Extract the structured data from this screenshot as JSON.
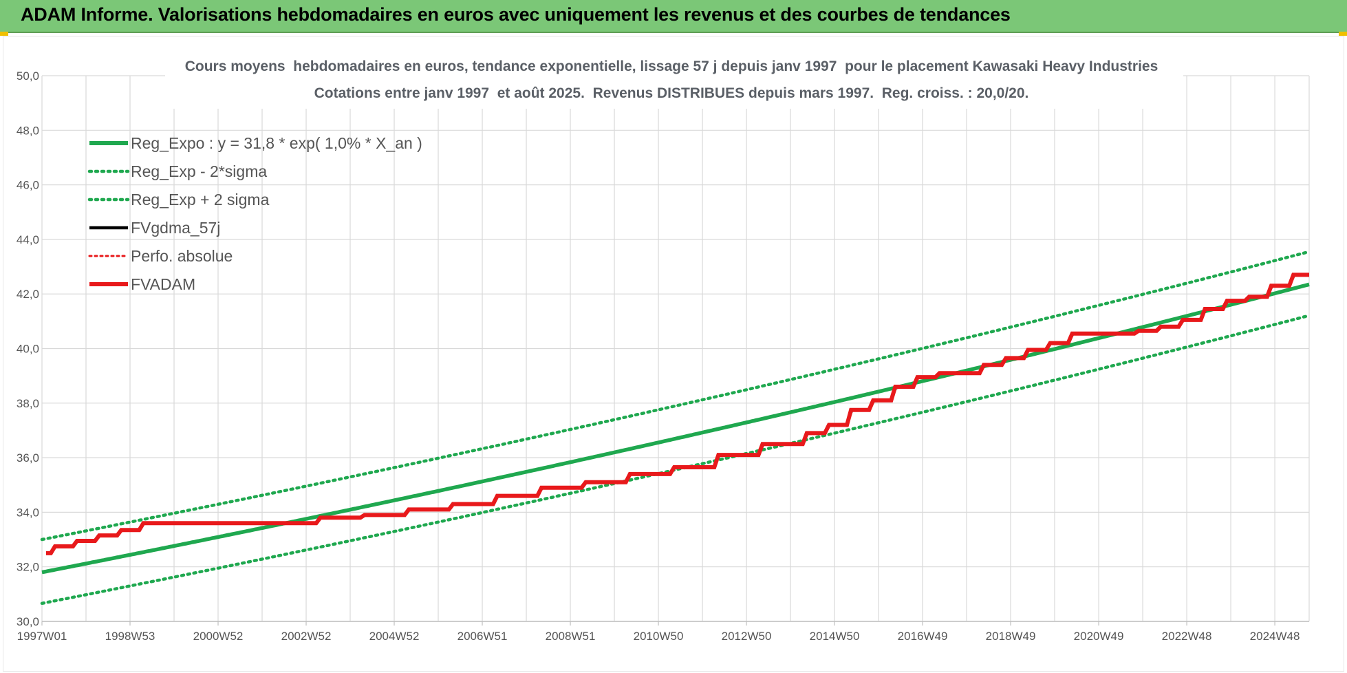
{
  "banner": {
    "title": "ADAM Informe. Valorisations hebdomadaires en euros avec uniquement les revenus et des courbes de tendances",
    "background": "#7bc777",
    "corner_color": "#f0c000"
  },
  "chart_data": {
    "type": "line",
    "title_lines": [
      "Cours moyens  hebdomadaires en euros, tendance exponentielle, lissage 57 j depuis janv 1997  pour le placement Kawasaki Heavy Industries",
      "Cotations entre janv 1997  et août 2025.  Revenus DISTRIBUES depuis mars 1997.  Reg. croiss. : 20,0/20."
    ],
    "x_tick_labels": [
      "1997W01",
      "1998W53",
      "2000W52",
      "2002W52",
      "2004W52",
      "2006W51",
      "2008W51",
      "2010W50",
      "2012W50",
      "2014W50",
      "2016W49",
      "2018W49",
      "2020W49",
      "2022W48",
      "2024W48"
    ],
    "x_range_years": [
      1997.0,
      2025.65
    ],
    "ylim": [
      30.0,
      50.0
    ],
    "y_ticks": [
      "30,0",
      "32,0",
      "34,0",
      "36,0",
      "38,0",
      "40,0",
      "42,0",
      "44,0",
      "46,0",
      "48,0",
      "50,0"
    ],
    "grid": true,
    "legend_placement": "top-left",
    "regression": {
      "base": 31.8,
      "rate": 0.01,
      "sigma_band": 1.2
    },
    "series": [
      {
        "name": "Reg_Expo : y = 31,8 * exp( 1,0% *  X_an )",
        "color": "#1fa84f",
        "style": "solid"
      },
      {
        "name": "Reg_Exp - 2*sigma",
        "color": "#1fa84f",
        "style": "dotted"
      },
      {
        "name": "Reg_Exp + 2 sigma",
        "color": "#1fa84f",
        "style": "dotted"
      },
      {
        "name": "FVgdma_57j",
        "color": "#000000",
        "style": "solid"
      },
      {
        "name": "Perfo. absolue",
        "color": "#e8191b",
        "style": "dotted"
      },
      {
        "name": "FVADAM",
        "color": "#e8191b",
        "style": "solid"
      }
    ],
    "fvadam_steps": [
      {
        "x": 1997.0,
        "y": 32.5
      },
      {
        "x": 1997.2,
        "y": 32.75
      },
      {
        "x": 1997.7,
        "y": 32.95
      },
      {
        "x": 1998.2,
        "y": 33.15
      },
      {
        "x": 1998.7,
        "y": 33.35
      },
      {
        "x": 1999.2,
        "y": 33.6
      },
      {
        "x": 2003.2,
        "y": 33.8
      },
      {
        "x": 2004.2,
        "y": 33.9
      },
      {
        "x": 2005.2,
        "y": 34.1
      },
      {
        "x": 2006.2,
        "y": 34.3
      },
      {
        "x": 2007.2,
        "y": 34.6
      },
      {
        "x": 2008.2,
        "y": 34.9
      },
      {
        "x": 2009.2,
        "y": 35.1
      },
      {
        "x": 2010.2,
        "y": 35.4
      },
      {
        "x": 2011.2,
        "y": 35.65
      },
      {
        "x": 2012.2,
        "y": 36.1
      },
      {
        "x": 2013.2,
        "y": 36.5
      },
      {
        "x": 2014.2,
        "y": 36.9
      },
      {
        "x": 2014.7,
        "y": 37.2
      },
      {
        "x": 2015.2,
        "y": 37.75
      },
      {
        "x": 2015.7,
        "y": 38.1
      },
      {
        "x": 2016.2,
        "y": 38.6
      },
      {
        "x": 2016.7,
        "y": 38.95
      },
      {
        "x": 2017.2,
        "y": 39.1
      },
      {
        "x": 2018.2,
        "y": 39.4
      },
      {
        "x": 2018.7,
        "y": 39.65
      },
      {
        "x": 2019.2,
        "y": 39.95
      },
      {
        "x": 2019.7,
        "y": 40.2
      },
      {
        "x": 2020.2,
        "y": 40.55
      },
      {
        "x": 2021.7,
        "y": 40.65
      },
      {
        "x": 2022.2,
        "y": 40.8
      },
      {
        "x": 2022.7,
        "y": 41.05
      },
      {
        "x": 2023.2,
        "y": 41.45
      },
      {
        "x": 2023.7,
        "y": 41.75
      },
      {
        "x": 2024.2,
        "y": 41.9
      },
      {
        "x": 2024.7,
        "y": 42.3
      },
      {
        "x": 2025.2,
        "y": 42.7
      }
    ]
  }
}
